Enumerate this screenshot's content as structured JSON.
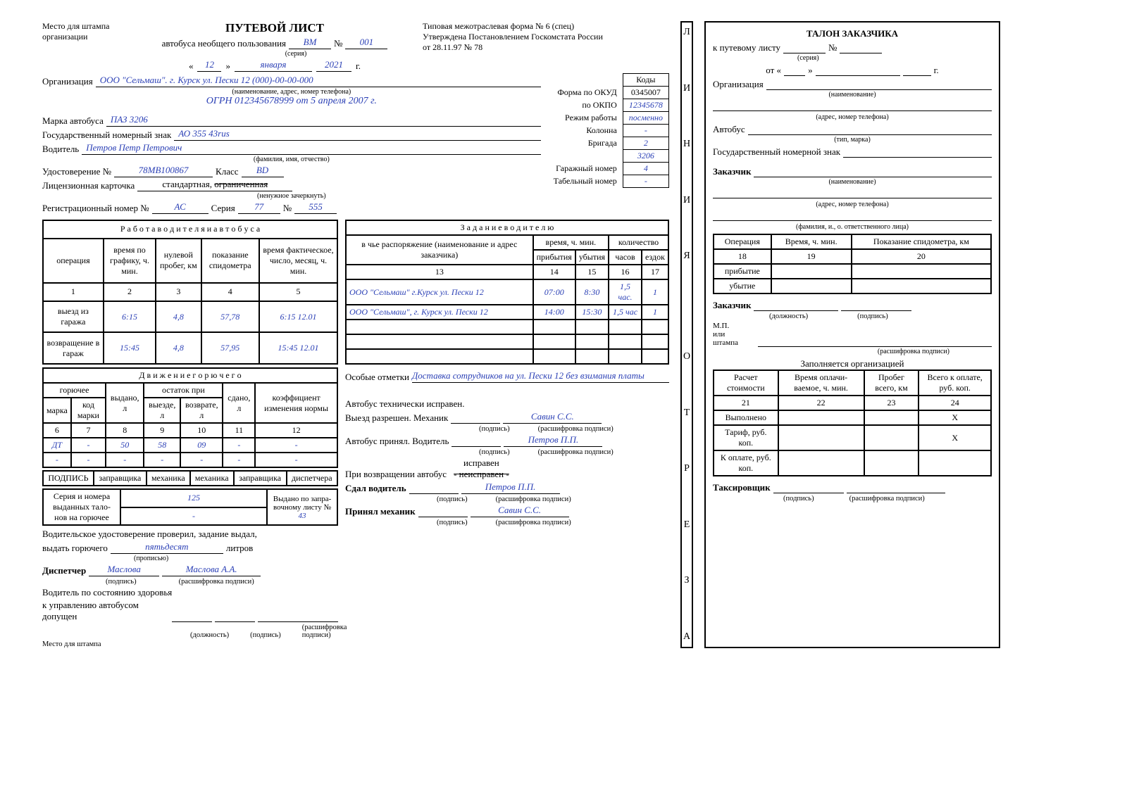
{
  "stampPlace": "Место для штампа\nорганизации",
  "formNote": "Типовая межотраслевая форма № 6 (спец)\nУтверждена Постановлением Госкомстата России\nот 28.11.97 № 78",
  "title": "ПУТЕВОЙ ЛИСТ",
  "subtitle": "автобуса необщего пользования",
  "series": "ВМ",
  "seriesLabel": "(серия)",
  "numSign": "№",
  "number": "001",
  "date": {
    "open": "«",
    "day": "12",
    "close": "»",
    "month": "января",
    "year": "2021",
    "yr": "г."
  },
  "orgLabel": "Организация",
  "orgValue": "ООО \"Сельмаш\". г. Курск ул. Пески 12  (000)-00-00-000",
  "orgSub": "(наименование, адрес, номер телефона)",
  "ogrn": "ОГРН 012345678999 от 5 апреля 2007 г.",
  "codes": {
    "header": "Коды",
    "okud": {
      "l": "Форма по ОКУД",
      "v": "0345007"
    },
    "okpo": {
      "l": "по ОКПО",
      "v": "12345678"
    },
    "mode": {
      "l": "Режим работы",
      "v": "посменно"
    },
    "col": {
      "l": "Колонна",
      "v": "-"
    },
    "brig": {
      "l": "Бригада",
      "v": "2"
    },
    "gar": {
      "l": "Гаражный номер",
      "v": "4"
    },
    "tab": {
      "l": "Табельный номер",
      "v": "-"
    },
    "modelCode": "3206"
  },
  "bus": {
    "l": "Марка автобуса",
    "v": "ПАЗ 3206"
  },
  "plate": {
    "l": "Государственный номерный знак",
    "v": "АО 355 43rus"
  },
  "driver": {
    "l": "Водитель",
    "v": "Петров Петр Петрович",
    "sub": "(фамилия, имя, отчество)"
  },
  "cert": {
    "l": "Удостоверение №",
    "v": "78МВ100867",
    "clsL": "Класс",
    "cls": "BD"
  },
  "lic": {
    "l": "Лицензионная карточка",
    "v1": "стандартная, ",
    "v2": "ограниченная",
    "sub": "(ненужное зачеркнуть)"
  },
  "reg": {
    "l": "Регистрационный номер №",
    "v": "АС",
    "sL": "Серия",
    "s": "77",
    "nL": "№",
    "n": "555"
  },
  "work": {
    "title": "Р а б о т а   в о д и т е л я   и   а в т о б у с а",
    "h": [
      "операция",
      "время по графику, ч. мин.",
      "нулевой пробег, км",
      "показание спидометра",
      "время фактическое, число, месяц, ч. мин."
    ],
    "nums": [
      "1",
      "2",
      "3",
      "4",
      "5"
    ],
    "r1": [
      "выезд из гаража",
      "6:15",
      "4,8",
      "57,78",
      "6:15 12.01"
    ],
    "r2": [
      "возвращение в гараж",
      "15:45",
      "4,8",
      "57,95",
      "15:45 12.01"
    ]
  },
  "task": {
    "title": "З а д а н и е   в о д и т е л ю",
    "h1": "в чье распоряжение (наименование и адрес заказчика)",
    "h2": "время, ч. мин.",
    "h2a": "прибытия",
    "h2b": "убытия",
    "h3": "количество",
    "h3a": "часов",
    "h3b": "ездок",
    "nums": [
      "13",
      "14",
      "15",
      "16",
      "17"
    ],
    "r1": [
      "ООО \"Сельмаш\" г.Курск ул. Пески 12",
      "07:00",
      "8:30",
      "1,5 час.",
      "1"
    ],
    "r2": [
      "ООО \"Сельмаш\", г. Курск ул. Пески 12",
      "14:00",
      "15:30",
      "1,5 час",
      "1"
    ]
  },
  "fuel": {
    "title": "Д в и ж е н и е   г о р ю ч е г о",
    "h": [
      "горючее",
      "",
      "выдано, л",
      "остаток при",
      "",
      "сдано, л",
      "коэффициент изменения нормы"
    ],
    "sub": [
      "марка",
      "код марки",
      "",
      "выезде, л",
      "возврате, л",
      "",
      ""
    ],
    "nums": [
      "6",
      "7",
      "8",
      "9",
      "10",
      "11",
      "12"
    ],
    "r1": [
      "ДТ",
      "-",
      "50",
      "58",
      "09",
      "-",
      "-"
    ],
    "r2": [
      "-",
      "-",
      "-",
      "-",
      "-",
      "-",
      "-"
    ]
  },
  "sign": {
    "l": "ПОДПИСЬ",
    "h": [
      "заправщика",
      "механика",
      "механика",
      "заправщика",
      "диспетчера"
    ]
  },
  "tickets": {
    "l": "Серия и номера выданных тало- нов на горючее",
    "v1": "125",
    "v2": "-",
    "refL": "Выдано по запра- вочному листу №",
    "ref": "43"
  },
  "issueLine": "Водительское удостоверение проверил, задание выдал,",
  "fuelOut": {
    "l": "выдать горючего",
    "v": "пятьдесят",
    "unit": "литров",
    "sub": "(прописью)"
  },
  "dispatcher": {
    "l": "Диспетчер",
    "sig": "Маслова",
    "name": "Маслова А.А.",
    "sub1": "(подпись)",
    "sub2": "(расшифровка подписи)"
  },
  "health": {
    "l1": "Водитель по состоянию здоровья",
    "l2": "к управлению автобусом допущен",
    "subs": [
      "(должность)",
      "(подпись)",
      "(расшифровка подписи)"
    ]
  },
  "stampBottom": "Место для штампа",
  "notes": {
    "l": "Особые отметки",
    "v": "Доставка сотрудников на ул. Пески 12 без взимания платы"
  },
  "tech": {
    "ok": "Автобус  технически исправен.",
    "out": {
      "l": "Выезд разрешен.  Механик",
      "v": "Савин С.С."
    },
    "take": {
      "l": "Автобус принял. Водитель",
      "v": "Петров П.П."
    },
    "ret": {
      "l": "При возвращении автобус",
      "ok": "исправен",
      "bad": "- неисправен -"
    },
    "gave": {
      "l": "Сдал водитель",
      "v": "Петров П.П."
    },
    "got": {
      "l": "Принял механик",
      "v": "Савин С.С."
    },
    "sub1": "(подпись)",
    "sub2": "(расшифровка подписи)"
  },
  "vline": [
    "Л",
    "И",
    "Н",
    "И",
    "Я",
    "",
    "О",
    "Т",
    "Р",
    "Е",
    "З",
    "А"
  ],
  "coupon": {
    "title": "ТАЛОН ЗАКАЗЧИКА",
    "to": "к путевому листу",
    "series": "(серия)",
    "num": "№",
    "date": {
      "ot": "от «",
      "close": "»",
      "yr": "г."
    },
    "org": "Организация",
    "orgSub": "(наименование)",
    "addr": "(адрес, номер телефона)",
    "bus": "Автобус",
    "busSub": "(тип, марка)",
    "plate": "Государственный номерной знак",
    "cust": "Заказчик",
    "custSub": "(наименование)",
    "respSub": "(фамилия, и., о. ответственного лица)",
    "t1": {
      "h": [
        "Операция",
        "Время, ч. мин.",
        "Показание спидометра, км"
      ],
      "nums": [
        "18",
        "19",
        "20"
      ],
      "r1": "прибытие",
      "r2": "убытие"
    },
    "c2": {
      "l": "Заказчик",
      "sub1": "(должность)",
      "sub2": "(подпись)",
      "mp": "М.П.\nили\nштампа",
      "sub3": "(расшифровка подписи)"
    },
    "fillOrg": "Заполняется организацией",
    "t2": {
      "h": [
        "Расчет стоимости",
        "Время оплачи- ваемое, ч. мин.",
        "Пробег всего, км",
        "Всего к оплате, руб. коп."
      ],
      "nums": [
        "21",
        "22",
        "23",
        "24"
      ],
      "rows": [
        "Выполнено",
        "Тариф, руб. коп.",
        "К оплате, руб. коп."
      ],
      "x": "Х"
    },
    "taxi": {
      "l": "Таксировщик",
      "sub1": "(подпись)",
      "sub2": "(расшифровка подписи)"
    }
  }
}
